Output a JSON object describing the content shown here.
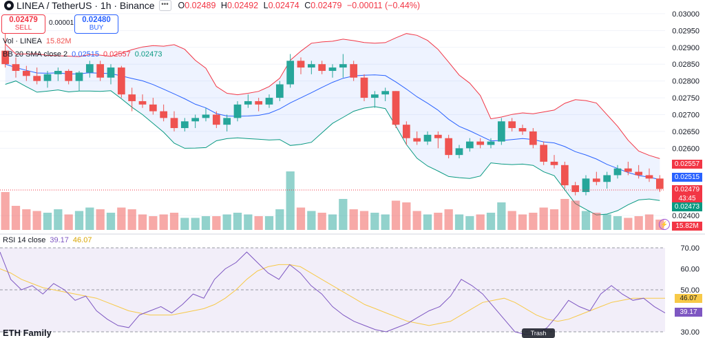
{
  "header": {
    "symbol": "LINEA / TetherUS · 1h · Binance",
    "open_label": "O",
    "open": "0.02489",
    "high_label": "H",
    "high": "0.02492",
    "low_label": "L",
    "low": "0.02474",
    "close_label": "C",
    "close": "0.02479",
    "change": "−0.00011 (−0.44%)"
  },
  "trade": {
    "sell_price": "0.02479",
    "sell_label": "SELL",
    "spread": "0.00001",
    "buy_price": "0.02480",
    "buy_label": "BUY"
  },
  "legends": {
    "vol_name": "Vol · LINEA",
    "vol_value": "15.82M",
    "bb_name": "BB 20 SMA close 2",
    "bb_basis": "0.02515",
    "bb_upper": "0.02557",
    "bb_lower": "0.02473",
    "rsi_name": "RSI 14 close",
    "rsi_value": "39.17",
    "rsi_ma": "46.07"
  },
  "price_axis": [
    "0.03000",
    "0.02950",
    "0.02900",
    "0.02850",
    "0.02800",
    "0.02750",
    "0.02700",
    "0.02650",
    "0.02600",
    "0.02400"
  ],
  "rsi_axis": [
    "70.00",
    "60.00",
    "50.00",
    "40.00",
    "30.00"
  ],
  "tags": {
    "upper": "0.02557",
    "basis": "0.02515",
    "last_price": "0.02479",
    "countdown": "43:45",
    "lower": "0.02473",
    "volume": "15.82M",
    "rsi_ma": "46.07",
    "rsi": "39.17"
  },
  "tooltip": "Trash",
  "bottom_text": "ETH Family",
  "colors": {
    "up": "#26a69a",
    "down": "#ef5350",
    "basis": "#2962ff",
    "upper": "#f23645",
    "lower": "#089981",
    "rsi": "#7e57c2",
    "rsi_ma": "#f7c948"
  },
  "chart_data": {
    "type": "candlestick",
    "symbol": "LINEA / TetherUS",
    "interval": "1h",
    "ylim": [
      0.0239,
      0.0301
    ],
    "candles_note": "sampled every ~2 bars; [open, high, low, close, volume_M]",
    "candles": [
      [
        0.0289,
        0.0297,
        0.0284,
        0.0285,
        22
      ],
      [
        0.0285,
        0.0287,
        0.0281,
        0.0283,
        14
      ],
      [
        0.0283,
        0.02845,
        0.028,
        0.02815,
        12
      ],
      [
        0.02815,
        0.0284,
        0.0279,
        0.028,
        11
      ],
      [
        0.028,
        0.0283,
        0.0278,
        0.0282,
        10
      ],
      [
        0.0282,
        0.0284,
        0.028,
        0.0283,
        12
      ],
      [
        0.0283,
        0.02835,
        0.0279,
        0.028,
        9
      ],
      [
        0.028,
        0.0283,
        0.0277,
        0.02825,
        11
      ],
      [
        0.02825,
        0.0286,
        0.0281,
        0.0285,
        13
      ],
      [
        0.0285,
        0.0286,
        0.028,
        0.0281,
        12
      ],
      [
        0.0281,
        0.0285,
        0.0279,
        0.0284,
        10
      ],
      [
        0.0284,
        0.02845,
        0.0275,
        0.0276,
        13
      ],
      [
        0.0276,
        0.0278,
        0.0271,
        0.0274,
        12
      ],
      [
        0.0274,
        0.0276,
        0.0272,
        0.0273,
        9
      ],
      [
        0.0273,
        0.0275,
        0.027,
        0.0271,
        8
      ],
      [
        0.0271,
        0.0273,
        0.0268,
        0.0269,
        9
      ],
      [
        0.0269,
        0.0271,
        0.0265,
        0.0266,
        10
      ],
      [
        0.0266,
        0.0269,
        0.0265,
        0.0268,
        7
      ],
      [
        0.0268,
        0.027,
        0.0266,
        0.0269,
        7
      ],
      [
        0.0269,
        0.0272,
        0.0268,
        0.027,
        8
      ],
      [
        0.027,
        0.0271,
        0.0266,
        0.0267,
        8
      ],
      [
        0.0267,
        0.027,
        0.0265,
        0.0269,
        9
      ],
      [
        0.0269,
        0.0274,
        0.0268,
        0.0273,
        10
      ],
      [
        0.0273,
        0.0276,
        0.0272,
        0.0274,
        9
      ],
      [
        0.0274,
        0.0275,
        0.0271,
        0.0273,
        8
      ],
      [
        0.0273,
        0.0276,
        0.0272,
        0.0275,
        8
      ],
      [
        0.0275,
        0.028,
        0.0274,
        0.0279,
        12
      ],
      [
        0.0279,
        0.0288,
        0.0278,
        0.0286,
        34
      ],
      [
        0.0286,
        0.0287,
        0.0282,
        0.0284,
        13
      ],
      [
        0.0284,
        0.0286,
        0.0282,
        0.0285,
        11
      ],
      [
        0.0285,
        0.0286,
        0.0282,
        0.0283,
        10
      ],
      [
        0.0283,
        0.0285,
        0.0281,
        0.0284,
        9
      ],
      [
        0.0284,
        0.0288,
        0.0281,
        0.0285,
        18
      ],
      [
        0.0285,
        0.0286,
        0.028,
        0.0281,
        12
      ],
      [
        0.0281,
        0.0282,
        0.0274,
        0.0275,
        11
      ],
      [
        0.0275,
        0.0277,
        0.0272,
        0.0276,
        10
      ],
      [
        0.0276,
        0.0278,
        0.0274,
        0.0277,
        9
      ],
      [
        0.0277,
        0.0277,
        0.0266,
        0.0267,
        17
      ],
      [
        0.0267,
        0.0268,
        0.0261,
        0.0263,
        16
      ],
      [
        0.0263,
        0.0265,
        0.0261,
        0.0262,
        11
      ],
      [
        0.0262,
        0.0265,
        0.0261,
        0.0264,
        9
      ],
      [
        0.0264,
        0.0265,
        0.026,
        0.0263,
        10
      ],
      [
        0.0263,
        0.0264,
        0.0257,
        0.0258,
        12
      ],
      [
        0.0258,
        0.0261,
        0.0257,
        0.026,
        9
      ],
      [
        0.026,
        0.0263,
        0.0259,
        0.0262,
        8
      ],
      [
        0.0262,
        0.0263,
        0.026,
        0.0261,
        9
      ],
      [
        0.0261,
        0.0263,
        0.026,
        0.0262,
        10
      ],
      [
        0.0262,
        0.0269,
        0.0261,
        0.0268,
        16
      ],
      [
        0.0268,
        0.0269,
        0.0265,
        0.0266,
        11
      ],
      [
        0.0266,
        0.0267,
        0.0264,
        0.0265,
        9
      ],
      [
        0.0265,
        0.0266,
        0.026,
        0.0261,
        10
      ],
      [
        0.0261,
        0.0262,
        0.0255,
        0.0256,
        13
      ],
      [
        0.0256,
        0.0258,
        0.0254,
        0.0255,
        12
      ],
      [
        0.0255,
        0.0256,
        0.0248,
        0.0249,
        18
      ],
      [
        0.0249,
        0.025,
        0.0246,
        0.0247,
        17
      ],
      [
        0.0247,
        0.0252,
        0.0246,
        0.0251,
        11
      ],
      [
        0.0251,
        0.0253,
        0.0249,
        0.025,
        10
      ],
      [
        0.025,
        0.0253,
        0.0248,
        0.0252,
        9
      ],
      [
        0.0252,
        0.0255,
        0.0251,
        0.0254,
        8
      ],
      [
        0.0254,
        0.0256,
        0.0252,
        0.0253,
        7
      ],
      [
        0.0253,
        0.0255,
        0.0251,
        0.0252,
        8
      ],
      [
        0.0252,
        0.0254,
        0.025,
        0.0251,
        9
      ],
      [
        0.0251,
        0.0252,
        0.0247,
        0.02479,
        6
      ]
    ],
    "rsi": [
      68,
      55,
      50,
      52,
      48,
      53,
      50,
      45,
      47,
      40,
      36,
      33,
      32,
      38,
      40,
      42,
      39,
      43,
      48,
      46,
      55,
      60,
      63,
      68,
      63,
      58,
      55,
      62,
      58,
      52,
      48,
      42,
      38,
      35,
      33,
      31,
      30,
      32,
      34,
      37,
      40,
      42,
      47,
      55,
      52,
      48,
      42,
      36,
      30,
      28,
      27,
      32,
      38,
      45,
      42,
      40,
      48,
      52,
      48,
      45,
      46,
      42,
      39
    ],
    "rsi_ma": [
      60,
      58,
      55,
      53,
      51,
      50,
      49,
      48,
      47,
      46,
      44,
      42,
      40,
      39,
      38,
      38,
      38,
      39,
      40,
      41,
      43,
      46,
      50,
      55,
      59,
      61,
      62,
      62,
      61,
      58,
      55,
      52,
      49,
      46,
      43,
      41,
      39,
      37,
      35,
      34,
      33,
      34,
      35,
      38,
      41,
      44,
      45,
      46,
      44,
      41,
      38,
      36,
      35,
      36,
      38,
      40,
      42,
      44,
      45,
      46,
      46,
      46,
      46
    ]
  }
}
